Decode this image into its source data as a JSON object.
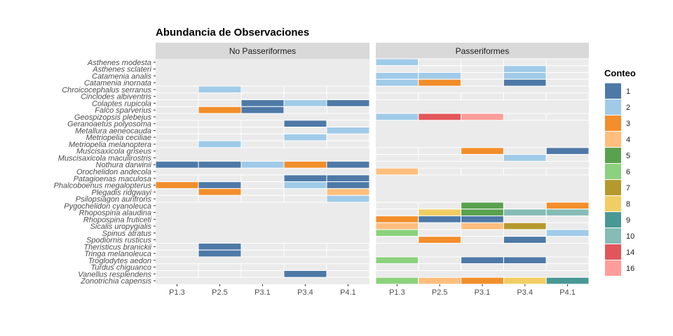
{
  "chart_data": {
    "type": "heatmap",
    "title": "Abundancia de Observaciones",
    "facets": [
      "No Passeriformes",
      "Passeriformes"
    ],
    "x_categories": [
      "P1.3",
      "P2.5",
      "P3.1",
      "P3.4",
      "P4.1"
    ],
    "species": [
      "Asthenes modesta",
      "Asthenes sclateri",
      "Catamenia analis",
      "Catamenia inornata",
      "Chroicocephalus serranus",
      "Cinclodes albiventris",
      "Colaptes rupicola",
      "Falco sparverius",
      "Geospizopsis plebejus",
      "Geranoaetus polyosoma",
      "Metallura aeneocauda",
      "Metriopelia ceciliae",
      "Metriopelia melanoptera",
      "Muscisaxicola griseus",
      "Muscisaxicola maculirostris",
      "Nothura darwinii",
      "Orochelidon andecola",
      "Patagioenas maculosa",
      "Phalcoboenus megalopterus",
      "Plegadis ridgwayi",
      "Psilopsiagon aurifrons",
      "Pygochelidon cyanoleuca",
      "Rhopospina alaudina",
      "Rhopospina fruticeti",
      "Sicalis uropygialis",
      "Spinus atratus",
      "Spodiornis rusticus",
      "Theristicus branickii",
      "Tringa melanoleuca",
      "Troglodytes aedon",
      "Turdus chiguanco",
      "Vanellus resplendens",
      "Zonotrichia capensis"
    ],
    "panels": [
      {
        "facet": "No Passeriformes",
        "rows": [
          {
            "species": "Chroicocephalus serranus",
            "values": [
              null,
              2,
              null,
              null,
              null
            ]
          },
          {
            "species": "Cinclodes albiventris",
            "values": [
              null,
              null,
              null,
              null,
              null
            ]
          },
          {
            "species": "Colaptes rupicola",
            "values": [
              null,
              null,
              1,
              2,
              1
            ]
          },
          {
            "species": "Falco sparverius",
            "values": [
              null,
              3,
              1,
              null,
              null
            ]
          },
          {
            "species": "Geranoaetus polyosoma",
            "values": [
              null,
              null,
              null,
              1,
              null
            ]
          },
          {
            "species": "Metallura aeneocauda",
            "values": [
              null,
              null,
              null,
              null,
              2
            ]
          },
          {
            "species": "Metriopelia ceciliae",
            "values": [
              null,
              null,
              null,
              2,
              null
            ]
          },
          {
            "species": "Metriopelia melanoptera",
            "values": [
              null,
              2,
              null,
              null,
              null
            ]
          },
          {
            "species": "Nothura darwinii",
            "values": [
              1,
              1,
              2,
              3,
              1
            ]
          },
          {
            "species": "Patagioenas maculosa",
            "values": [
              null,
              null,
              null,
              1,
              1
            ]
          },
          {
            "species": "Phalcoboenus megalopterus",
            "values": [
              3,
              1,
              null,
              2,
              1
            ]
          },
          {
            "species": "Plegadis ridgwayi",
            "values": [
              null,
              3,
              null,
              null,
              4
            ]
          },
          {
            "species": "Psilopsiagon aurifrons",
            "values": [
              null,
              null,
              null,
              null,
              2
            ]
          },
          {
            "species": "Theristicus branickii",
            "values": [
              null,
              1,
              null,
              null,
              null
            ]
          },
          {
            "species": "Tringa melanoleuca",
            "values": [
              null,
              1,
              null,
              null,
              null
            ]
          },
          {
            "species": "Turdus chiguanco",
            "values": [
              null,
              null,
              null,
              null,
              null
            ]
          },
          {
            "species": "Vanellus resplendens",
            "values": [
              null,
              null,
              null,
              1,
              null
            ]
          }
        ]
      },
      {
        "facet": "Passeriformes",
        "rows": [
          {
            "species": "Asthenes modesta",
            "values": [
              2,
              null,
              null,
              null,
              null
            ]
          },
          {
            "species": "Asthenes sclateri",
            "values": [
              null,
              null,
              null,
              2,
              null
            ]
          },
          {
            "species": "Catamenia analis",
            "values": [
              2,
              2,
              null,
              2,
              null
            ]
          },
          {
            "species": "Catamenia inornata",
            "values": [
              2,
              3,
              null,
              1,
              null
            ]
          },
          {
            "species": "Cinclodes albiventris",
            "values": [
              null,
              null,
              null,
              null,
              null
            ]
          },
          {
            "species": "Geospizopsis plebejus",
            "values": [
              2,
              14,
              16,
              null,
              null
            ]
          },
          {
            "species": "Muscisaxicola griseus",
            "values": [
              null,
              null,
              3,
              null,
              1
            ]
          },
          {
            "species": "Muscisaxicola maculirostris",
            "values": [
              null,
              null,
              null,
              2,
              null
            ]
          },
          {
            "species": "Orochelidon andecola",
            "values": [
              4,
              null,
              null,
              null,
              null
            ]
          },
          {
            "species": "Pygochelidon cyanoleuca",
            "values": [
              null,
              null,
              5,
              null,
              3
            ]
          },
          {
            "species": "Rhopospina alaudina",
            "values": [
              null,
              8,
              5,
              10,
              10
            ]
          },
          {
            "species": "Rhopospina fruticeti",
            "values": [
              3,
              1,
              1,
              null,
              null
            ]
          },
          {
            "species": "Sicalis uropygialis",
            "values": [
              4,
              null,
              4,
              7,
              null
            ]
          },
          {
            "species": "Spinus atratus",
            "values": [
              6,
              null,
              null,
              null,
              2
            ]
          },
          {
            "species": "Spodiornis rusticus",
            "values": [
              null,
              3,
              null,
              1,
              null
            ]
          },
          {
            "species": "Troglodytes aedon",
            "values": [
              6,
              null,
              1,
              1,
              null
            ]
          },
          {
            "species": "Turdus chiguanco",
            "values": [
              null,
              null,
              null,
              null,
              null
            ]
          },
          {
            "species": "Zonotrichia capensis",
            "values": [
              6,
              4,
              3,
              8,
              9
            ]
          }
        ]
      }
    ],
    "legend": {
      "title": "Conteo",
      "position": "right",
      "items": [
        {
          "label": "1",
          "color": "#4E79A7"
        },
        {
          "label": "2",
          "color": "#A0CBE8"
        },
        {
          "label": "3",
          "color": "#F28E2B"
        },
        {
          "label": "4",
          "color": "#FFBE7D"
        },
        {
          "label": "5",
          "color": "#59A14F"
        },
        {
          "label": "6",
          "color": "#8CD17D"
        },
        {
          "label": "7",
          "color": "#B6992D"
        },
        {
          "label": "8",
          "color": "#F1CE63"
        },
        {
          "label": "9",
          "color": "#499894"
        },
        {
          "label": "10",
          "color": "#86BCB6"
        },
        {
          "label": "14",
          "color": "#E15759"
        },
        {
          "label": "16",
          "color": "#FF9D9A"
        }
      ]
    },
    "panel_background": "#EBEBEB",
    "strip_background": "#D9D9D9"
  }
}
